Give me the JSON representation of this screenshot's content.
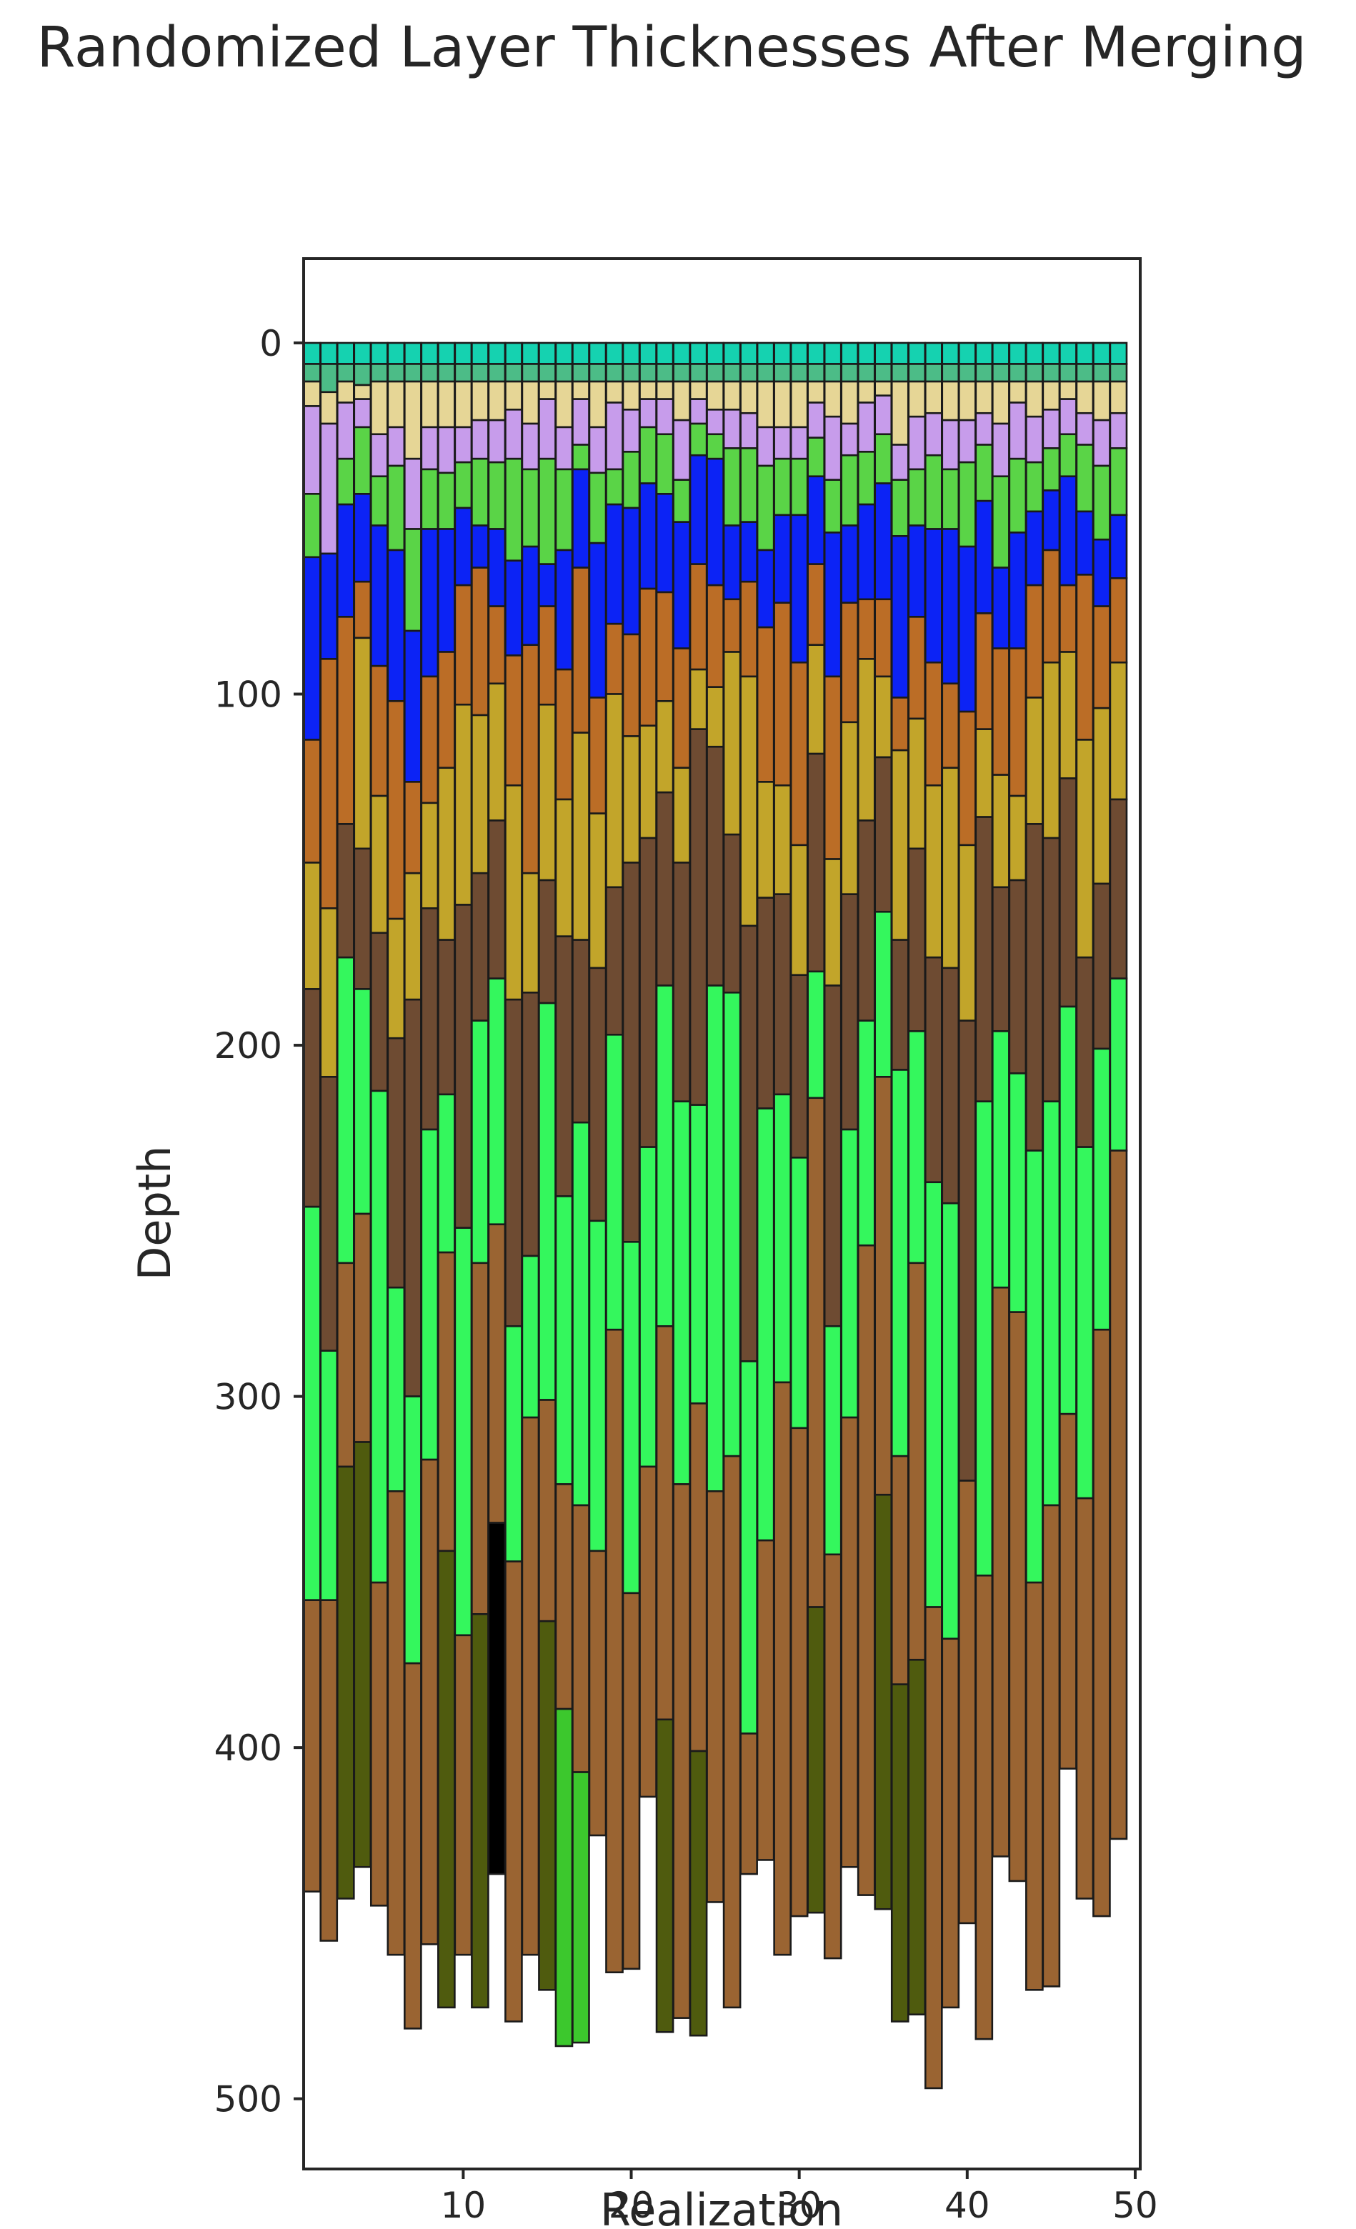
{
  "chart_data": {
    "type": "bar",
    "subtype": "stacked-bar",
    "title": "Randomized Layer Thicknesses After Merging",
    "xlabel": "Realization",
    "ylabel": "Depth",
    "y_inverted": true,
    "xlim": [
      0.5,
      50.3
    ],
    "ylim": [
      520,
      -24
    ],
    "xticks": [
      10,
      20,
      30,
      40,
      50
    ],
    "yticks": [
      0,
      100,
      200,
      300,
      400,
      500
    ],
    "grid": false,
    "legend": "none",
    "layer_colors": [
      "#15d2b0",
      "#4cbc87",
      "#e6d696",
      "#c79ceb",
      "#5ad447",
      "#0c23f5",
      "#bb6d26",
      "#c2a52a",
      "#6e4b32",
      "#34f75d",
      "#9a6432",
      "#4f5b0e",
      "#3cc82d",
      "#34f75d"
    ],
    "realizations": [
      1,
      2,
      3,
      4,
      5,
      6,
      7,
      8,
      9,
      10,
      11,
      12,
      13,
      14,
      15,
      16,
      17,
      18,
      19,
      20,
      21,
      22,
      23,
      24,
      25,
      26,
      27,
      28,
      29,
      30,
      31,
      32,
      33,
      34,
      35,
      36,
      37,
      38,
      39,
      40,
      41,
      42,
      43,
      44,
      45,
      46,
      47,
      48,
      49
    ],
    "boundaries": [
      [
        0,
        6,
        11,
        18,
        43,
        61,
        113,
        148,
        184,
        246,
        358,
        441
      ],
      [
        0,
        6,
        14,
        23,
        60,
        90,
        161,
        209,
        287,
        358,
        455
      ],
      [
        0,
        6,
        11,
        17,
        33,
        46,
        78,
        137,
        175,
        262,
        320,
        443
      ],
      [
        0,
        6,
        12,
        16,
        24,
        43,
        68,
        84,
        144,
        184,
        248,
        313,
        434
      ],
      [
        0,
        6,
        11,
        26,
        38,
        52,
        92,
        129,
        168,
        213,
        353,
        445
      ],
      [
        0,
        6,
        11,
        24,
        35,
        59,
        102,
        164,
        198,
        269,
        327,
        459
      ],
      [
        0,
        6,
        11,
        33,
        53,
        82,
        125,
        151,
        187,
        300,
        376,
        480
      ],
      [
        0,
        6,
        11,
        24,
        36,
        53,
        95,
        131,
        161,
        224,
        318,
        456
      ],
      [
        0,
        6,
        11,
        24,
        37,
        53,
        88,
        121,
        170,
        214,
        259,
        344,
        474
      ],
      [
        0,
        6,
        11,
        24,
        34,
        47,
        69,
        103,
        160,
        252,
        368,
        459
      ],
      [
        0,
        6,
        11,
        22,
        33,
        52,
        64,
        106,
        151,
        193,
        262,
        362,
        474
      ],
      [
        0,
        6,
        11,
        22,
        34,
        53,
        75,
        97,
        136,
        181,
        251,
        336,
        436
      ],
      [
        0,
        6,
        11,
        19,
        33,
        62,
        89,
        126,
        187,
        280,
        347,
        478
      ],
      [
        0,
        6,
        11,
        23,
        36,
        58,
        86,
        151,
        185,
        260,
        306,
        459
      ],
      [
        0,
        6,
        11,
        16,
        33,
        63,
        75,
        103,
        153,
        188,
        301,
        364,
        469
      ],
      [
        0,
        6,
        11,
        24,
        36,
        59,
        93,
        130,
        169,
        243,
        325,
        389,
        485
      ],
      [
        0,
        6,
        11,
        16,
        29,
        36,
        64,
        111,
        170,
        222,
        331,
        407,
        484
      ],
      [
        0,
        6,
        11,
        24,
        37,
        57,
        101,
        134,
        178,
        250,
        344,
        425
      ],
      [
        0,
        6,
        11,
        17,
        36,
        46,
        80,
        100,
        155,
        197,
        281,
        464
      ],
      [
        0,
        6,
        11,
        19,
        31,
        47,
        83,
        112,
        148,
        256,
        356,
        463
      ],
      [
        0,
        6,
        11,
        16,
        24,
        40,
        70,
        109,
        141,
        229,
        320,
        414
      ],
      [
        0,
        6,
        11,
        16,
        26,
        43,
        71,
        102,
        128,
        183,
        280,
        392,
        481
      ],
      [
        0,
        6,
        11,
        22,
        39,
        51,
        87,
        121,
        148,
        216,
        325,
        477
      ],
      [
        0,
        6,
        11,
        16,
        23,
        32,
        63,
        93,
        110,
        217,
        302,
        401,
        482
      ],
      [
        0,
        6,
        11,
        19,
        26,
        33,
        69,
        98,
        115,
        183,
        327,
        444
      ],
      [
        0,
        6,
        11,
        19,
        30,
        52,
        73,
        88,
        140,
        185,
        317,
        474
      ],
      [
        0,
        6,
        11,
        20,
        30,
        51,
        68,
        95,
        166,
        290,
        396,
        436
      ],
      [
        0,
        6,
        11,
        24,
        35,
        59,
        81,
        125,
        158,
        218,
        341,
        432
      ],
      [
        0,
        6,
        11,
        24,
        33,
        49,
        74,
        126,
        157,
        214,
        296,
        459
      ],
      [
        0,
        6,
        11,
        24,
        33,
        49,
        91,
        143,
        180,
        232,
        309,
        448
      ],
      [
        0,
        6,
        11,
        17,
        27,
        38,
        63,
        86,
        117,
        179,
        215,
        360,
        447
      ],
      [
        0,
        6,
        11,
        21,
        39,
        54,
        95,
        147,
        183,
        280,
        345,
        460
      ],
      [
        0,
        6,
        11,
        23,
        32,
        52,
        74,
        108,
        157,
        224,
        306,
        434
      ],
      [
        0,
        6,
        11,
        17,
        31,
        46,
        73,
        90,
        136,
        193,
        257,
        442
      ],
      [
        0,
        6,
        11,
        15,
        26,
        40,
        73,
        95,
        118,
        162,
        209,
        328,
        446
      ],
      [
        0,
        6,
        11,
        29,
        39,
        55,
        101,
        116,
        170,
        207,
        317,
        382,
        478
      ],
      [
        0,
        6,
        11,
        21,
        36,
        52,
        78,
        107,
        144,
        196,
        262,
        375,
        476
      ],
      [
        0,
        6,
        11,
        20,
        32,
        53,
        91,
        126,
        175,
        239,
        360,
        497
      ],
      [
        0,
        6,
        11,
        22,
        36,
        53,
        97,
        121,
        178,
        245,
        369,
        474
      ],
      [
        0,
        6,
        11,
        22,
        34,
        58,
        105,
        143,
        193,
        324,
        450
      ],
      [
        0,
        6,
        11,
        20,
        29,
        45,
        77,
        110,
        135,
        216,
        351,
        483
      ],
      [
        0,
        6,
        11,
        23,
        38,
        64,
        87,
        123,
        155,
        196,
        269,
        431
      ],
      [
        0,
        6,
        11,
        17,
        33,
        54,
        87,
        129,
        153,
        208,
        276,
        438
      ],
      [
        0,
        6,
        11,
        21,
        34,
        48,
        69,
        101,
        137,
        230,
        353,
        469
      ],
      [
        0,
        6,
        11,
        19,
        30,
        42,
        59,
        91,
        141,
        216,
        331,
        468
      ],
      [
        0,
        6,
        11,
        16,
        26,
        38,
        69,
        88,
        124,
        189,
        305,
        406
      ],
      [
        0,
        6,
        11,
        20,
        29,
        48,
        66,
        113,
        175,
        229,
        329,
        443
      ],
      [
        0,
        6,
        11,
        22,
        35,
        56,
        75,
        104,
        154,
        201,
        281,
        448
      ],
      [
        0,
        6,
        11,
        20,
        30,
        49,
        67,
        91,
        130,
        181,
        230,
        426
      ]
    ],
    "layer_index": [
      [
        0,
        1,
        2,
        3,
        4,
        5,
        6,
        7,
        8,
        9,
        10
      ],
      [
        0,
        1,
        2,
        3,
        5,
        6,
        7,
        8,
        9,
        10
      ],
      [
        0,
        1,
        2,
        3,
        4,
        5,
        6,
        8,
        9,
        10,
        11
      ],
      [
        0,
        1,
        2,
        3,
        4,
        5,
        6,
        7,
        8,
        9,
        10,
        11
      ],
      [
        0,
        1,
        2,
        3,
        4,
        5,
        6,
        7,
        8,
        9,
        10
      ],
      [
        0,
        1,
        2,
        3,
        4,
        5,
        6,
        7,
        8,
        9,
        10
      ],
      [
        0,
        1,
        2,
        3,
        4,
        5,
        6,
        7,
        8,
        9,
        10
      ],
      [
        0,
        1,
        2,
        3,
        4,
        5,
        6,
        7,
        8,
        9,
        10
      ],
      [
        0,
        1,
        2,
        3,
        4,
        5,
        6,
        7,
        8,
        9,
        10,
        11
      ],
      [
        0,
        1,
        2,
        3,
        4,
        5,
        6,
        7,
        8,
        9,
        10
      ],
      [
        0,
        1,
        2,
        3,
        4,
        5,
        6,
        7,
        8,
        9,
        10,
        11
      ],
      [
        0,
        1,
        2,
        3,
        4,
        5,
        6,
        7,
        8,
        9,
        10
      ],
      [
        0,
        1,
        2,
        3,
        4,
        5,
        6,
        7,
        8,
        9,
        10
      ],
      [
        0,
        1,
        2,
        3,
        4,
        5,
        6,
        7,
        8,
        9,
        10
      ],
      [
        0,
        1,
        2,
        3,
        4,
        5,
        6,
        7,
        8,
        9,
        10,
        11
      ],
      [
        0,
        1,
        2,
        3,
        4,
        5,
        6,
        7,
        8,
        9,
        10,
        12
      ],
      [
        0,
        1,
        2,
        3,
        4,
        5,
        6,
        7,
        8,
        9,
        10,
        12
      ],
      [
        0,
        1,
        2,
        3,
        4,
        5,
        6,
        7,
        8,
        9,
        10
      ],
      [
        0,
        1,
        2,
        3,
        4,
        5,
        6,
        7,
        8,
        9,
        10
      ],
      [
        0,
        1,
        2,
        3,
        4,
        5,
        6,
        7,
        8,
        9,
        10
      ],
      [
        0,
        1,
        2,
        3,
        4,
        5,
        6,
        7,
        8,
        9,
        10
      ],
      [
        0,
        1,
        2,
        3,
        4,
        5,
        6,
        7,
        8,
        9,
        10,
        11
      ],
      [
        0,
        1,
        2,
        3,
        4,
        5,
        6,
        7,
        8,
        9,
        10
      ],
      [
        0,
        1,
        2,
        3,
        4,
        5,
        6,
        7,
        8,
        9,
        10,
        11
      ],
      [
        0,
        1,
        2,
        3,
        4,
        5,
        6,
        7,
        8,
        9,
        10
      ],
      [
        0,
        1,
        2,
        3,
        4,
        5,
        6,
        7,
        8,
        9,
        10
      ],
      [
        0,
        1,
        2,
        3,
        4,
        5,
        6,
        7,
        8,
        9,
        10
      ],
      [
        0,
        1,
        2,
        3,
        4,
        5,
        6,
        7,
        8,
        9,
        10
      ],
      [
        0,
        1,
        2,
        3,
        4,
        5,
        6,
        7,
        8,
        9,
        10
      ],
      [
        0,
        1,
        2,
        3,
        4,
        5,
        6,
        7,
        8,
        9,
        10
      ],
      [
        0,
        1,
        2,
        3,
        4,
        5,
        6,
        7,
        8,
        9,
        10,
        11
      ],
      [
        0,
        1,
        2,
        3,
        4,
        5,
        6,
        7,
        8,
        9,
        10
      ],
      [
        0,
        1,
        2,
        3,
        4,
        5,
        6,
        7,
        8,
        9,
        10
      ],
      [
        0,
        1,
        2,
        3,
        4,
        5,
        6,
        7,
        8,
        9,
        10
      ],
      [
        0,
        1,
        2,
        3,
        4,
        5,
        6,
        7,
        8,
        9,
        10,
        11
      ],
      [
        0,
        1,
        2,
        3,
        4,
        5,
        6,
        7,
        8,
        9,
        10,
        11
      ],
      [
        0,
        1,
        2,
        3,
        4,
        5,
        6,
        7,
        8,
        9,
        10,
        11
      ],
      [
        0,
        1,
        2,
        3,
        4,
        5,
        6,
        7,
        8,
        9,
        10
      ],
      [
        0,
        1,
        2,
        3,
        4,
        5,
        6,
        7,
        8,
        9,
        10
      ],
      [
        0,
        1,
        2,
        3,
        4,
        5,
        6,
        7,
        8,
        10
      ],
      [
        0,
        1,
        2,
        3,
        4,
        5,
        6,
        7,
        8,
        9,
        10
      ],
      [
        0,
        1,
        2,
        3,
        4,
        5,
        6,
        7,
        8,
        9,
        10
      ],
      [
        0,
        1,
        2,
        3,
        4,
        5,
        6,
        7,
        8,
        9,
        10
      ],
      [
        0,
        1,
        2,
        3,
        4,
        5,
        6,
        7,
        8,
        9,
        10
      ],
      [
        0,
        1,
        2,
        3,
        4,
        5,
        6,
        7,
        8,
        9,
        10
      ],
      [
        0,
        1,
        2,
        3,
        4,
        5,
        6,
        7,
        8,
        9,
        10
      ],
      [
        0,
        1,
        2,
        3,
        4,
        5,
        6,
        7,
        8,
        9,
        10
      ],
      [
        0,
        1,
        2,
        3,
        4,
        5,
        6,
        7,
        8,
        9,
        10
      ],
      [
        0,
        1,
        2,
        3,
        4,
        5,
        6,
        7,
        8,
        9,
        10
      ]
    ]
  }
}
